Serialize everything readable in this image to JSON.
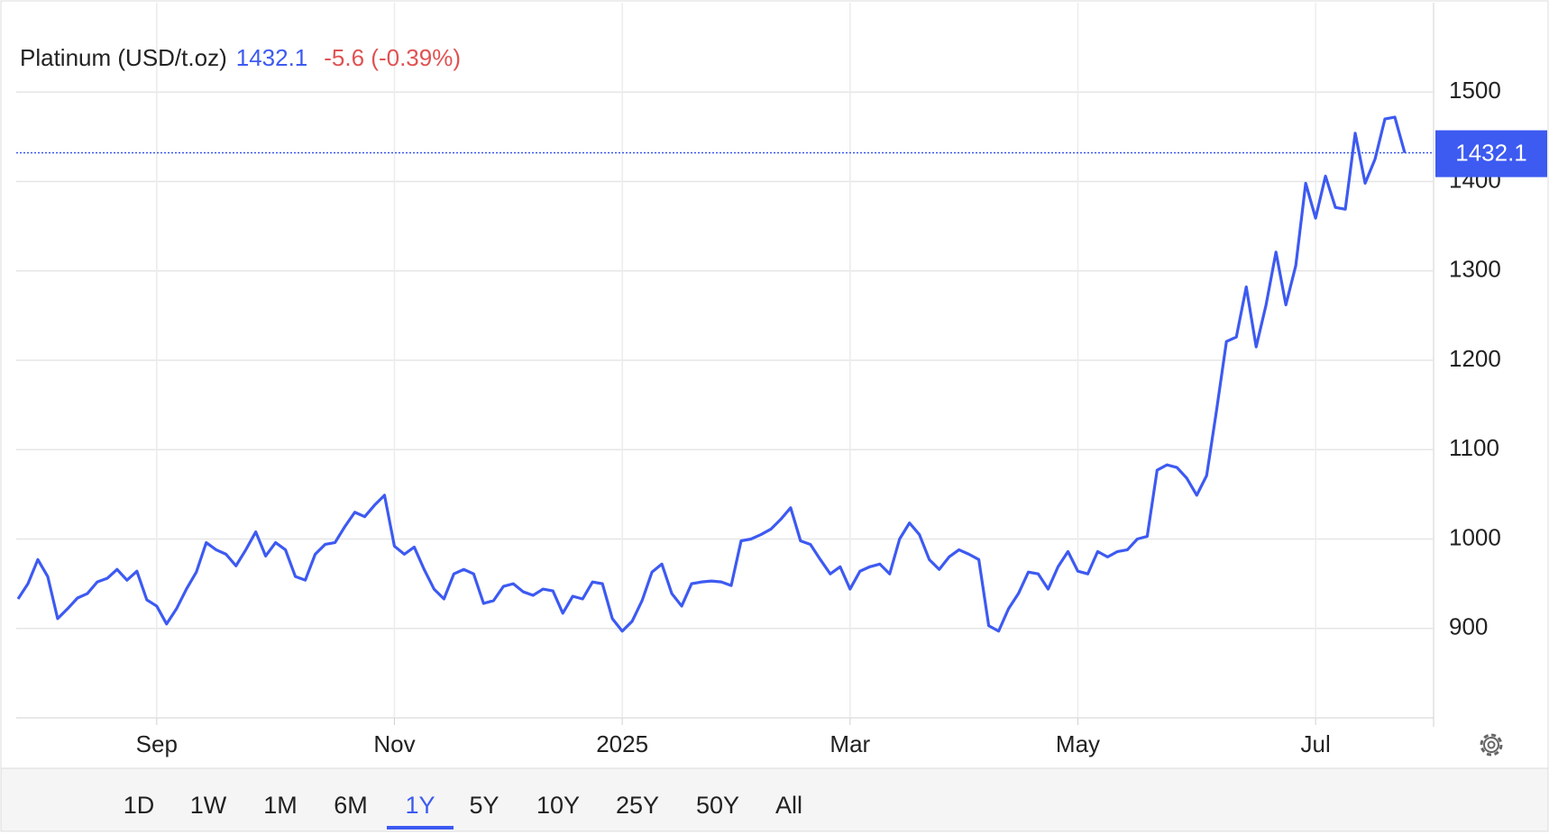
{
  "chart_data": {
    "type": "line",
    "title": "Platinum (USD/t.oz)",
    "change": "-5.6 (-0.39%)",
    "range_buttons": [
      "1D",
      "1W",
      "1M",
      "6M",
      "1Y",
      "5Y",
      "10Y",
      "25Y",
      "50Y",
      "All"
    ],
    "categories": [
      null,
      null,
      null,
      null,
      null,
      null,
      null,
      null,
      null,
      null,
      null,
      null,
      null,
      null,
      "Sep",
      null,
      null,
      null,
      null,
      null,
      null,
      null,
      null,
      null,
      null,
      null,
      null,
      null,
      null,
      null,
      null,
      null,
      null,
      null,
      null,
      null,
      null,
      null,
      "Nov",
      null,
      null,
      null,
      null,
      null,
      null,
      null,
      null,
      null,
      null,
      null,
      null,
      null,
      null,
      null,
      null,
      null,
      null,
      null,
      null,
      null,
      null,
      "2025",
      null,
      null,
      null,
      null,
      null,
      null,
      null,
      null,
      null,
      null,
      null,
      null,
      null,
      null,
      null,
      null,
      null,
      null,
      null,
      null,
      null,
      null,
      "Mar",
      null,
      null,
      null,
      null,
      null,
      null,
      null,
      null,
      null,
      null,
      null,
      null,
      null,
      null,
      null,
      null,
      null,
      null,
      null,
      null,
      null,
      null,
      "May",
      null,
      null,
      null,
      null,
      null,
      null,
      null,
      null,
      null,
      null,
      null,
      null,
      null,
      null,
      null,
      null,
      null,
      null,
      null,
      null,
      null,
      null,
      null,
      "Jul",
      null,
      null,
      null,
      null,
      null,
      null,
      null,
      null,
      null
    ],
    "series": [
      {
        "name": "Platinum",
        "color": "#3d5af1",
        "values": [
          933,
          950,
          977,
          958,
          911,
          922,
          934,
          939,
          952,
          956,
          966,
          954,
          964,
          932,
          925,
          905,
          922,
          944,
          963,
          996,
          988,
          983,
          970,
          988,
          1008,
          981,
          996,
          988,
          958,
          954,
          983,
          994,
          996,
          1014,
          1030,
          1025,
          1038,
          1049,
          992,
          983,
          991,
          966,
          944,
          933,
          961,
          966,
          961,
          928,
          931,
          947,
          950,
          941,
          937,
          944,
          942,
          917,
          936,
          933,
          952,
          950,
          911,
          897,
          908,
          931,
          963,
          972,
          939,
          925,
          950,
          952,
          953,
          952,
          948,
          998,
          1000,
          1005,
          1011,
          1022,
          1035,
          998,
          994,
          977,
          961,
          969,
          944,
          964,
          969,
          972,
          961,
          1000,
          1018,
          1005,
          977,
          966,
          980,
          988,
          983,
          977,
          903,
          897,
          922,
          939,
          963,
          961,
          944,
          969,
          986,
          964,
          961,
          986,
          980,
          986,
          988,
          1000,
          1003,
          1077,
          1083,
          1080,
          1068,
          1049,
          1071,
          1144,
          1221,
          1226,
          1282,
          1215,
          1262,
          1321,
          1262,
          1306,
          1398,
          1359,
          1406,
          1371,
          1369,
          1454,
          1398,
          1425,
          1470,
          1472,
          1432.1
        ]
      }
    ],
    "ylim": [
      800,
      1600
    ],
    "yticks": [
      900,
      1000,
      1100,
      1200,
      1300,
      1400,
      1500
    ],
    "grid": true,
    "change_color": "#e05252"
  }
}
